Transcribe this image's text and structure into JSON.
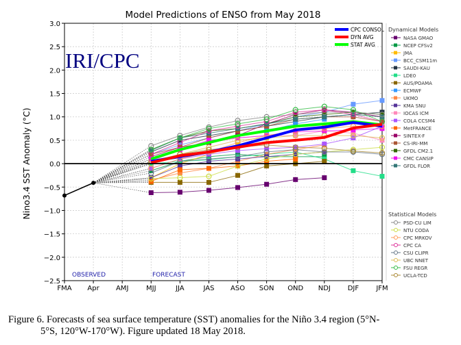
{
  "chart_data": {
    "type": "line",
    "title": "Model Predictions of ENSO from May 2018",
    "watermark": "IRI/CPC",
    "xlabel": "",
    "ylabel": "Nino3.4 SST Anomaly (°C)",
    "categories": [
      "FMA",
      "Apr",
      "AMJ",
      "MJJ",
      "JJA",
      "JAS",
      "ASO",
      "SON",
      "OND",
      "NDJ",
      "DJF",
      "JFM"
    ],
    "ylim": [
      -2.5,
      3.0
    ],
    "yticks": [
      -2.5,
      -2.0,
      -1.5,
      -1.0,
      -0.5,
      0.0,
      0.5,
      1.0,
      1.5,
      2.0,
      2.5,
      3.0
    ],
    "ytick_labels": [
      "−2.5",
      "−2.0",
      "−1.5",
      "−1.0",
      "−0.5",
      "0.0",
      "0.5",
      "1.0",
      "1.5",
      "2.0",
      "2.5",
      "3.0"
    ],
    "grid": true,
    "annotations": {
      "observed": "OBSERVED",
      "forecast": "FORECAST"
    },
    "observed": {
      "name": "Observed",
      "x": [
        "FMA",
        "Apr"
      ],
      "values": [
        -0.68,
        -0.41
      ],
      "color": "#000000"
    },
    "legend_top": {
      "placement": "top-right",
      "entries": [
        {
          "name": "CPC CONSOL",
          "color": "#0000ff"
        },
        {
          "name": "DYN AVG",
          "color": "#ff0000"
        },
        {
          "name": "STAT AVG",
          "color": "#00ff00"
        }
      ]
    },
    "dynamical_title": "Dynamical Models",
    "statistical_title": "Statistical Models",
    "average_series": [
      {
        "name": "CPC CONSOL",
        "color": "#0000ff",
        "values": [
          0.05,
          0.15,
          0.25,
          0.38,
          0.55,
          0.72,
          0.78,
          0.88,
          0.8
        ]
      },
      {
        "name": "DYN AVG",
        "color": "#ff0000",
        "values": [
          0.02,
          0.17,
          0.25,
          0.35,
          0.45,
          0.5,
          0.56,
          0.76,
          0.84
        ]
      },
      {
        "name": "STAT AVG",
        "color": "#00ff00",
        "values": [
          0.1,
          0.3,
          0.45,
          0.6,
          0.7,
          0.8,
          0.85,
          0.9,
          0.83
        ]
      }
    ],
    "dynamical_series": [
      {
        "name": "NASA GMAO",
        "color": "#66006e",
        "values": [
          -0.62,
          -0.61,
          -0.57,
          -0.51,
          -0.44,
          -0.34,
          -0.3,
          null,
          null
        ]
      },
      {
        "name": "NCEP CFSv2",
        "color": "#009944",
        "values": [
          -0.15,
          0.05,
          0.15,
          0.2,
          0.15,
          0.15,
          0.15,
          null,
          null
        ]
      },
      {
        "name": "JMA",
        "color": "#ffbb00",
        "values": [
          -0.3,
          0.0,
          0.2,
          0.4,
          0.55,
          0.7,
          0.8,
          null,
          null
        ]
      },
      {
        "name": "BCC_CSM11m",
        "color": "#6699ff",
        "values": [
          0.2,
          0.4,
          0.55,
          0.7,
          0.85,
          1.0,
          1.1,
          1.27,
          1.35
        ]
      },
      {
        "name": "SAUDI-KAU",
        "color": "#223344",
        "values": [
          0.25,
          0.5,
          0.6,
          0.7,
          0.8,
          0.9,
          1.0,
          1.05,
          1.1
        ]
      },
      {
        "name": "LDE0",
        "color": "#22dd88",
        "values": [
          0.0,
          0.05,
          0.08,
          0.15,
          0.2,
          0.25,
          0.1,
          -0.15,
          -0.27
        ]
      },
      {
        "name": "AUS/POAMA",
        "color": "#886600",
        "values": [
          -0.4,
          -0.4,
          -0.4,
          -0.25,
          -0.05,
          0.0,
          0.05,
          null,
          null
        ]
      },
      {
        "name": "ECMWF",
        "color": "#3399ff",
        "values": [
          0.1,
          0.3,
          0.45,
          0.6,
          0.7,
          0.85,
          0.95,
          null,
          null
        ]
      },
      {
        "name": "UKMO",
        "color": "#ff8844",
        "values": [
          -0.35,
          -0.2,
          -0.1,
          0.05,
          0.2,
          0.3,
          0.4,
          null,
          null
        ]
      },
      {
        "name": "KMA SNU",
        "color": "#553399",
        "values": [
          -0.3,
          -0.05,
          0.05,
          0.1,
          0.15,
          0.2,
          0.25,
          null,
          null
        ]
      },
      {
        "name": "IOCAS ICM",
        "color": "#ff88bb",
        "values": [
          0.05,
          0.3,
          0.45,
          0.55,
          0.6,
          0.6,
          0.7,
          0.65,
          0.5
        ]
      },
      {
        "name": "COLA CCSM4",
        "color": "#aa55ff",
        "values": [
          -0.1,
          0.1,
          0.2,
          0.28,
          0.32,
          0.35,
          0.42,
          0.55,
          0.8
        ]
      },
      {
        "name": "MetFRANCE",
        "color": "#ff6600",
        "values": [
          -0.38,
          -0.13,
          -0.1,
          -0.05,
          0.05,
          0.1,
          null,
          null,
          null
        ]
      },
      {
        "name": "SINTEX-F",
        "color": "#990066",
        "values": [
          0.15,
          0.35,
          0.45,
          0.6,
          0.85,
          1.05,
          1.15,
          1.1,
          1.0
        ]
      },
      {
        "name": "CS-IRI-MM",
        "color": "#aa5533",
        "values": [
          0.2,
          0.35,
          0.55,
          0.7,
          0.8,
          0.95,
          1.0,
          1.0,
          0.9
        ]
      },
      {
        "name": "GFDL CM2.1",
        "color": "#336600",
        "values": [
          0.3,
          0.55,
          0.7,
          0.75,
          0.85,
          1.0,
          1.05,
          1.1,
          1.05
        ]
      },
      {
        "name": "CMC CANSIP",
        "color": "#ee11ee",
        "values": [
          0.1,
          0.3,
          0.5,
          0.55,
          0.6,
          0.68,
          0.7,
          0.72,
          0.75
        ]
      },
      {
        "name": "GFDL FLOR",
        "color": "#337777",
        "values": [
          0.28,
          0.55,
          0.65,
          0.75,
          0.85,
          0.95,
          1.0,
          1.05,
          1.0
        ]
      }
    ],
    "statistical_series": [
      {
        "name": "PSD-CU LIM",
        "color": "#888888",
        "values": [
          0.38,
          0.6,
          0.78,
          0.92,
          1.0,
          1.05,
          1.1,
          1.1,
          1.05
        ]
      },
      {
        "name": "NTU CODA",
        "color": "#ccdd44",
        "values": [
          -0.32,
          -0.3,
          -0.27,
          -0.05,
          0.1,
          0.2,
          0.25,
          0.3,
          0.35
        ]
      },
      {
        "name": "CPC MRKOV",
        "color": "#ff9955",
        "values": [
          -0.1,
          0.1,
          0.25,
          0.45,
          0.6,
          0.7,
          0.75,
          0.8,
          0.8
        ]
      },
      {
        "name": "CPC CA",
        "color": "#dd3399",
        "values": [
          0.2,
          0.45,
          0.7,
          0.8,
          0.9,
          1.1,
          1.15,
          1.05,
          0.9
        ]
      },
      {
        "name": "CSU CLIPR",
        "color": "#667788",
        "values": [
          -0.2,
          0.05,
          0.1,
          0.15,
          0.25,
          0.3,
          0.25,
          0.25,
          0.2
        ]
      },
      {
        "name": "UBC NNET",
        "color": "#ddbb55",
        "values": [
          0.0,
          0.2,
          0.35,
          0.5,
          0.55,
          0.6,
          0.6,
          0.6,
          0.55
        ]
      },
      {
        "name": "FSU REGR",
        "color": "#33bb44",
        "values": [
          0.3,
          0.55,
          0.75,
          0.85,
          0.95,
          1.15,
          1.22,
          1.15,
          0.9
        ]
      },
      {
        "name": "UCLA-TCD",
        "color": "#aa8833",
        "values": [
          0.05,
          0.2,
          0.3,
          0.35,
          0.4,
          0.35,
          0.33,
          0.27,
          0.23
        ]
      }
    ]
  },
  "caption": {
    "line1": "Figure 6. Forecasts of sea surface temperature (SST) anomalies for the Niño 3.4 region (5°N-",
    "line2": "5°S, 120°W-170°W). Figure updated 18 May 2018."
  }
}
